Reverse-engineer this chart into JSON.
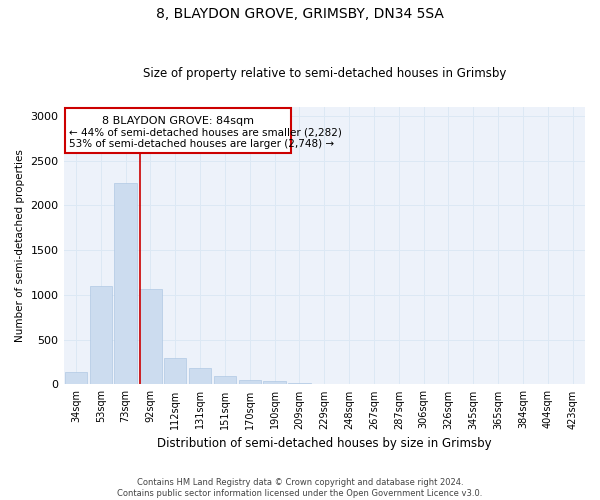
{
  "title": "8, BLAYDON GROVE, GRIMSBY, DN34 5SA",
  "subtitle": "Size of property relative to semi-detached houses in Grimsby",
  "xlabel": "Distribution of semi-detached houses by size in Grimsby",
  "ylabel": "Number of semi-detached properties",
  "footnote1": "Contains HM Land Registry data © Crown copyright and database right 2024.",
  "footnote2": "Contains public sector information licensed under the Open Government Licence v3.0.",
  "categories": [
    "34sqm",
    "53sqm",
    "73sqm",
    "92sqm",
    "112sqm",
    "131sqm",
    "151sqm",
    "170sqm",
    "190sqm",
    "209sqm",
    "229sqm",
    "248sqm",
    "267sqm",
    "287sqm",
    "306sqm",
    "326sqm",
    "345sqm",
    "365sqm",
    "384sqm",
    "404sqm",
    "423sqm"
  ],
  "values": [
    140,
    1100,
    2250,
    1070,
    300,
    185,
    90,
    55,
    35,
    20,
    10,
    5,
    5,
    2,
    1,
    1,
    0,
    0,
    0,
    0,
    0
  ],
  "bar_color": "#ccdcef",
  "bar_edge_color": "#b0c8e4",
  "grid_color": "#dce8f4",
  "background_color": "#edf2fa",
  "annotation_text_line1": "8 BLAYDON GROVE: 84sqm",
  "annotation_text_line2": "← 44% of semi-detached houses are smaller (2,282)",
  "annotation_text_line3": "53% of semi-detached houses are larger (2,748) →",
  "vline_color": "#cc0000",
  "ylim": [
    0,
    3100
  ],
  "yticks": [
    0,
    500,
    1000,
    1500,
    2000,
    2500,
    3000
  ]
}
